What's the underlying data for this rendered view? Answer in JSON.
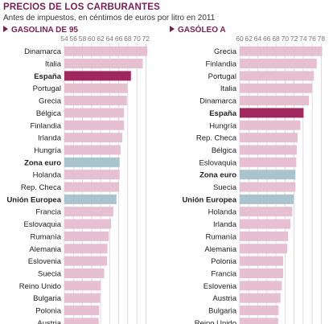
{
  "title": "PRECIOS DE LOS CARBURANTES",
  "subtitle": "Antes de impuestos, en céntimos de euros por litro en 2011",
  "colors": {
    "bar": "#e6bfd0",
    "highlight": "#a0285f",
    "aggregate": "#a9c4cd",
    "header": "#7a1f52",
    "label": "#222222",
    "grid": "#cfcfcf",
    "tick": "#777777"
  },
  "chart_data": [
    {
      "type": "bar",
      "orientation": "horizontal",
      "title": "GASOLINA DE 95",
      "ticks": [
        54,
        56,
        58,
        60,
        62,
        64,
        66,
        68,
        70,
        72
      ],
      "xlim": [
        54,
        73
      ],
      "grid": true,
      "categories": [
        "Dinamarca",
        "Italia",
        "España",
        "Portugal",
        "Grecia",
        "Bélgica",
        "Finlandia",
        "Irlanda",
        "Hungría",
        "Zona euro",
        "Holanda",
        "Rep. Checa",
        "Unión Europea",
        "Francia",
        "Eslovaquia",
        "Rumanía",
        "Alemania",
        "Eslovenia",
        "Suecia",
        "Reino Unido",
        "Bulgaria",
        "Polonia",
        "Austria"
      ],
      "values": [
        72.3,
        71.3,
        68.7,
        67.9,
        67.8,
        67.2,
        67.2,
        66.8,
        66.4,
        66.2,
        66.2,
        66.1,
        65.5,
        64.8,
        64.3,
        63.8,
        63.5,
        63.4,
        62.8,
        62.0,
        61.9,
        61.7,
        61.6
      ],
      "highlighted": [
        "España"
      ],
      "aggregates": [
        "Zona euro",
        "Unión Europea"
      ]
    },
    {
      "type": "bar",
      "orientation": "horizontal",
      "title": "GASÓLEO A",
      "ticks": [
        60,
        62,
        64,
        66,
        68,
        70,
        72,
        74,
        76,
        78
      ],
      "xlim": [
        60,
        79
      ],
      "grid": true,
      "categories": [
        "Grecia",
        "Finlandia",
        "Portugal",
        "Italia",
        "Dinamarca",
        "España",
        "Hungría",
        "Rep. Checa",
        "Bélgica",
        "Eslovaquia",
        "Zona euro",
        "Suecia",
        "Unión Europea",
        "Holanda",
        "Irlanda",
        "Rumanía",
        "Alemania",
        "Polonia",
        "Francia",
        "Eslovenia",
        "Austria",
        "Bulgaria",
        "Reino Unido"
      ],
      "values": [
        78.2,
        77.0,
        76.4,
        76.0,
        75.3,
        74.1,
        73.4,
        72.8,
        72.6,
        72.5,
        72.3,
        72.3,
        71.9,
        71.6,
        71.2,
        70.7,
        70.5,
        69.6,
        69.6,
        69.3,
        69.0,
        68.6,
        68.5
      ],
      "highlighted": [
        "España"
      ],
      "aggregates": [
        "Zona euro",
        "Unión Europea"
      ]
    }
  ]
}
